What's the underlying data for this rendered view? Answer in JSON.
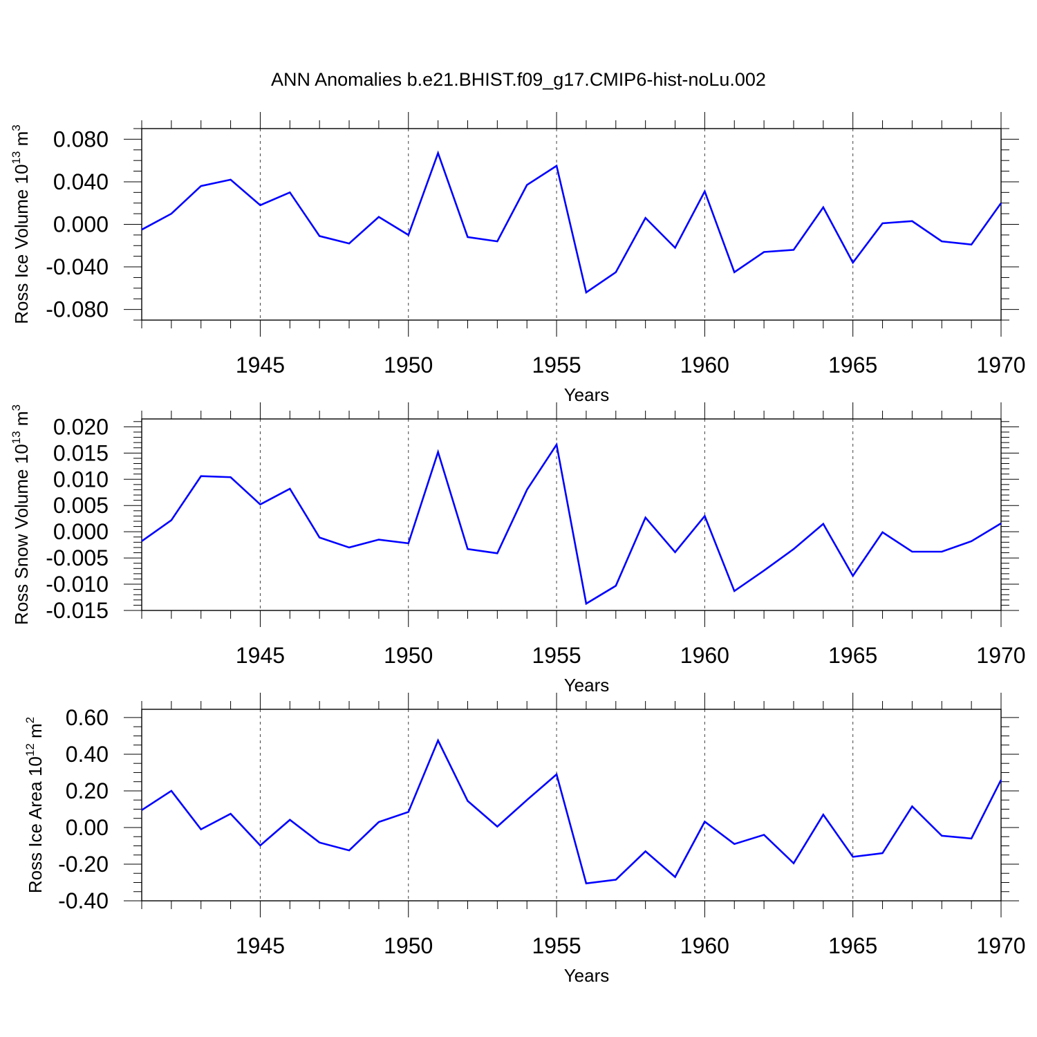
{
  "figure_title": "ANN Anomalies b.e21.BHIST.f09_g17.CMIP6-hist-noLu.002",
  "colors": {
    "line": "#0000ff",
    "axis": "#000000",
    "grid": "#000000"
  },
  "chart_data": [
    {
      "type": "line",
      "name": "ross-ice-volume",
      "title": "",
      "xlabel": "Years",
      "ylabel": {
        "base": "Ross Ice Volume 10",
        "exp1": "13",
        "mid": " m",
        "exp2": "3"
      },
      "xlim": [
        1941,
        1970
      ],
      "ylim": [
        -0.09,
        0.09
      ],
      "xticks": [
        1945,
        1950,
        1955,
        1960,
        1965,
        1970
      ],
      "xtick_labels": [
        "1945",
        "1950",
        "1955",
        "1960",
        "1965",
        "1970"
      ],
      "yticks": [
        -0.08,
        -0.04,
        0.0,
        0.04,
        0.08
      ],
      "ytick_labels": [
        "-0.080",
        "-0.040",
        "0.000",
        "0.040",
        "0.080"
      ],
      "yminor_step": 0.01,
      "grid": "vertical dashed at major x ticks",
      "x": [
        1941,
        1942,
        1943,
        1944,
        1945,
        1946,
        1947,
        1948,
        1949,
        1950,
        1951,
        1952,
        1953,
        1954,
        1955,
        1956,
        1957,
        1958,
        1959,
        1960,
        1961,
        1962,
        1963,
        1964,
        1965,
        1966,
        1967,
        1968,
        1969,
        1970
      ],
      "values": [
        -0.005,
        0.01,
        0.036,
        0.042,
        0.018,
        0.03,
        -0.011,
        -0.018,
        0.007,
        -0.01,
        0.067,
        -0.012,
        -0.016,
        0.037,
        0.055,
        -0.064,
        -0.045,
        0.006,
        -0.022,
        0.031,
        -0.045,
        -0.026,
        -0.024,
        0.016,
        -0.036,
        0.001,
        0.003,
        -0.016,
        -0.019,
        0.02
      ]
    },
    {
      "type": "line",
      "name": "ross-snow-volume",
      "title": "",
      "xlabel": "Years",
      "ylabel": {
        "base": "Ross Snow Volume 10",
        "exp1": "13",
        "mid": " m",
        "exp2": "3"
      },
      "xlim": [
        1941,
        1970
      ],
      "ylim": [
        -0.015,
        0.0215
      ],
      "xticks": [
        1945,
        1950,
        1955,
        1960,
        1965,
        1970
      ],
      "xtick_labels": [
        "1945",
        "1950",
        "1955",
        "1960",
        "1965",
        "1970"
      ],
      "yticks": [
        -0.015,
        -0.01,
        -0.005,
        0.0,
        0.005,
        0.01,
        0.015,
        0.02
      ],
      "ytick_labels": [
        "-0.015",
        "-0.010",
        "-0.005",
        "0.000",
        "0.005",
        "0.010",
        "0.015",
        "0.020"
      ],
      "yminor_step": 0.001,
      "grid": "vertical dashed at major x ticks",
      "x": [
        1941,
        1942,
        1943,
        1944,
        1945,
        1946,
        1947,
        1948,
        1949,
        1950,
        1951,
        1952,
        1953,
        1954,
        1955,
        1956,
        1957,
        1958,
        1959,
        1960,
        1961,
        1962,
        1963,
        1964,
        1965,
        1966,
        1967,
        1968,
        1969,
        1970
      ],
      "values": [
        -0.0018,
        0.0022,
        0.0106,
        0.0104,
        0.0052,
        0.0082,
        -0.0011,
        -0.003,
        -0.0015,
        -0.0022,
        0.0152,
        -0.0033,
        -0.0041,
        0.008,
        0.0166,
        -0.0137,
        -0.0103,
        0.0027,
        -0.0039,
        0.003,
        -0.0113,
        -0.0074,
        -0.0033,
        0.0015,
        -0.0084,
        -0.0001,
        -0.0038,
        -0.0038,
        -0.0018,
        0.0016
      ]
    },
    {
      "type": "line",
      "name": "ross-ice-area",
      "title": "",
      "xlabel": "Years",
      "ylabel": {
        "base": "Ross Ice Area 10",
        "exp1": "12",
        "mid": " m",
        "exp2": "2"
      },
      "xlim": [
        1941,
        1970
      ],
      "ylim": [
        -0.4,
        0.645
      ],
      "xticks": [
        1945,
        1950,
        1955,
        1960,
        1965,
        1970
      ],
      "xtick_labels": [
        "1945",
        "1950",
        "1955",
        "1960",
        "1965",
        "1970"
      ],
      "yticks": [
        -0.4,
        -0.2,
        0.0,
        0.2,
        0.4,
        0.6
      ],
      "ytick_labels": [
        "-0.40",
        "-0.20",
        "0.00",
        "0.20",
        "0.40",
        "0.60"
      ],
      "yminor_step": 0.05,
      "grid": "vertical dashed at major x ticks",
      "x": [
        1941,
        1942,
        1943,
        1944,
        1945,
        1946,
        1947,
        1948,
        1949,
        1950,
        1951,
        1952,
        1953,
        1954,
        1955,
        1956,
        1957,
        1958,
        1959,
        1960,
        1961,
        1962,
        1963,
        1964,
        1965,
        1966,
        1967,
        1968,
        1969,
        1970
      ],
      "values": [
        0.095,
        0.2,
        -0.01,
        0.075,
        -0.098,
        0.042,
        -0.082,
        -0.125,
        0.03,
        0.085,
        0.475,
        0.145,
        0.005,
        0.15,
        0.29,
        -0.305,
        -0.285,
        -0.13,
        -0.27,
        0.032,
        -0.09,
        -0.04,
        -0.195,
        0.07,
        -0.16,
        -0.14,
        0.115,
        -0.045,
        -0.06,
        0.26
      ]
    }
  ]
}
